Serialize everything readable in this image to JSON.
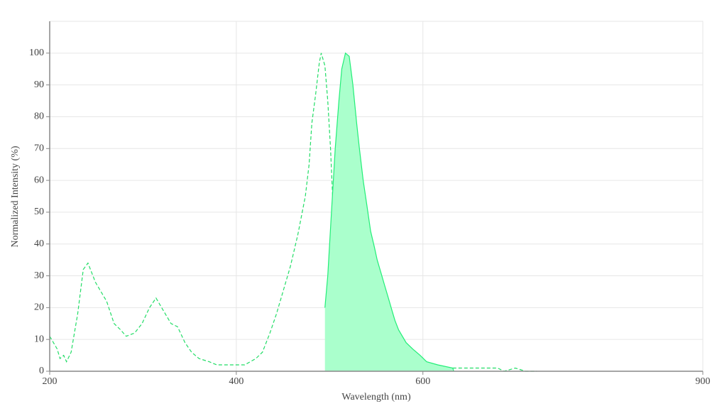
{
  "chart_data": {
    "type": "spectra",
    "x_label": "Wavelength (nm)",
    "y_label": "Normalized Intensity (%)",
    "xlim": [
      200,
      900
    ],
    "ylim": [
      0,
      110
    ],
    "xticks": [
      200,
      400,
      600,
      900
    ],
    "yticks": [
      0,
      10,
      20,
      30,
      40,
      50,
      60,
      70,
      80,
      90,
      100
    ],
    "grid": true,
    "series": [
      {
        "style": "dashed",
        "color": "#22dd66",
        "x": [
          200,
          208,
          211,
          215,
          218,
          223,
          230,
          236,
          241,
          249,
          257,
          261,
          269,
          276,
          282,
          291,
          299,
          307,
          314,
          322,
          330,
          337,
          345,
          352,
          360,
          371,
          379,
          390,
          409,
          421,
          428,
          436,
          443,
          451,
          458,
          466,
          474,
          478,
          481,
          485,
          489,
          491,
          495,
          498,
          501,
          504,
          508,
          512,
          516,
          521,
          527,
          535,
          565,
          604,
          634,
          680,
          687,
          699,
          710,
          722
        ],
        "values": [
          11,
          7,
          4,
          5,
          3,
          6,
          18,
          32,
          34,
          28,
          24,
          22,
          15,
          13,
          11,
          12,
          15,
          20,
          23,
          19,
          15,
          14,
          9,
          6,
          4,
          3,
          2,
          2,
          2,
          4,
          6,
          12,
          18,
          26,
          33,
          43,
          55,
          65,
          78,
          87,
          97,
          100,
          96,
          85,
          70,
          50,
          30,
          20,
          12,
          6,
          3,
          1,
          1,
          1,
          1,
          1,
          0,
          1,
          0,
          0
        ]
      },
      {
        "style": "area",
        "color": "#22ee77",
        "fill": "#aaffcc",
        "x": [
          495,
          498,
          502,
          506,
          510,
          513,
          517,
          521,
          525,
          529,
          532,
          536,
          540,
          544,
          548,
          551,
          555,
          559,
          563,
          567,
          570,
          574,
          582,
          589,
          597,
          604,
          616,
          632,
          633
        ],
        "values": [
          20,
          30,
          50,
          70,
          85,
          95,
          100,
          99,
          90,
          78,
          70,
          60,
          52,
          44,
          39,
          35,
          31,
          27,
          23,
          19,
          16,
          13,
          9,
          7,
          5,
          3,
          2,
          1,
          0
        ]
      }
    ]
  }
}
